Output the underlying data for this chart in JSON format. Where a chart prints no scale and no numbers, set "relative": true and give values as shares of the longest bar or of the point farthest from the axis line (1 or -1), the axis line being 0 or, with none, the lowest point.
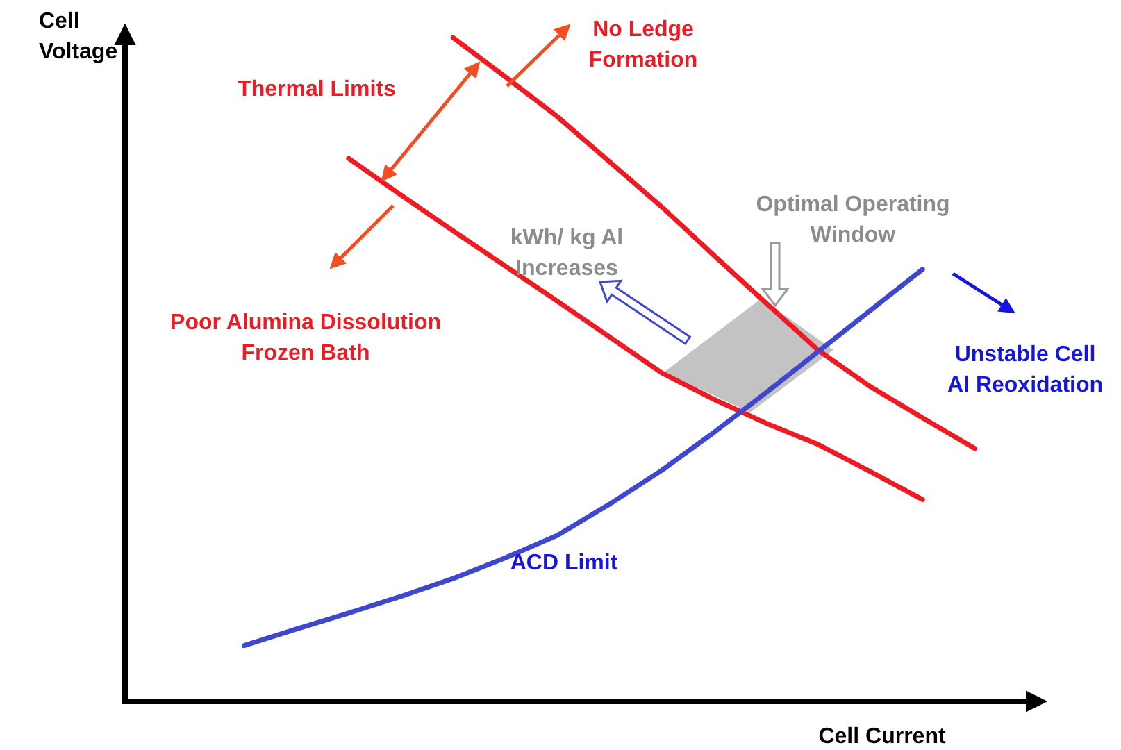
{
  "chart_data": {
    "type": "line",
    "relative": true,
    "tick_labels": false,
    "marker": "none",
    "line_style": "solid",
    "xlabel": "Cell Current",
    "ylabel": "Cell Voltage",
    "categories": [
      null,
      null,
      null,
      null,
      null,
      null,
      null,
      null,
      null,
      null,
      null,
      null,
      null,
      null,
      null
    ],
    "series": [
      {
        "color": "#ed1c24",
        "values": [
          null,
          null,
          null,
          null,
          1.0,
          0.941,
          0.881,
          0.813,
          0.745,
          0.672,
          0.6,
          0.529,
          0.474,
          0.427,
          0.381
        ]
      },
      {
        "color": "#ed1c24",
        "values": [
          null,
          null,
          0.818,
          0.763,
          0.709,
          0.656,
          0.603,
          0.549,
          0.495,
          0.455,
          0.419,
          0.387,
          0.346,
          0.304,
          null
        ]
      },
      {
        "color": "#3f48cc",
        "values": [
          0.084,
          0.109,
          0.133,
          0.158,
          0.185,
          0.216,
          0.25,
          0.297,
          0.348,
          0.405,
          0.465,
          0.527,
          0.589,
          0.651,
          null
        ]
      }
    ],
    "annotations": [
      "Thermal Limits",
      "No Ledge\nFormation",
      "Poor Alumina Dissolution\nFrozen Bath",
      "Optimal Operating\nWindow",
      "kWh/ kg Al\nIncreases",
      "Unstable Cell\nAl Reoxidation",
      "ACD Limit"
    ]
  }
}
